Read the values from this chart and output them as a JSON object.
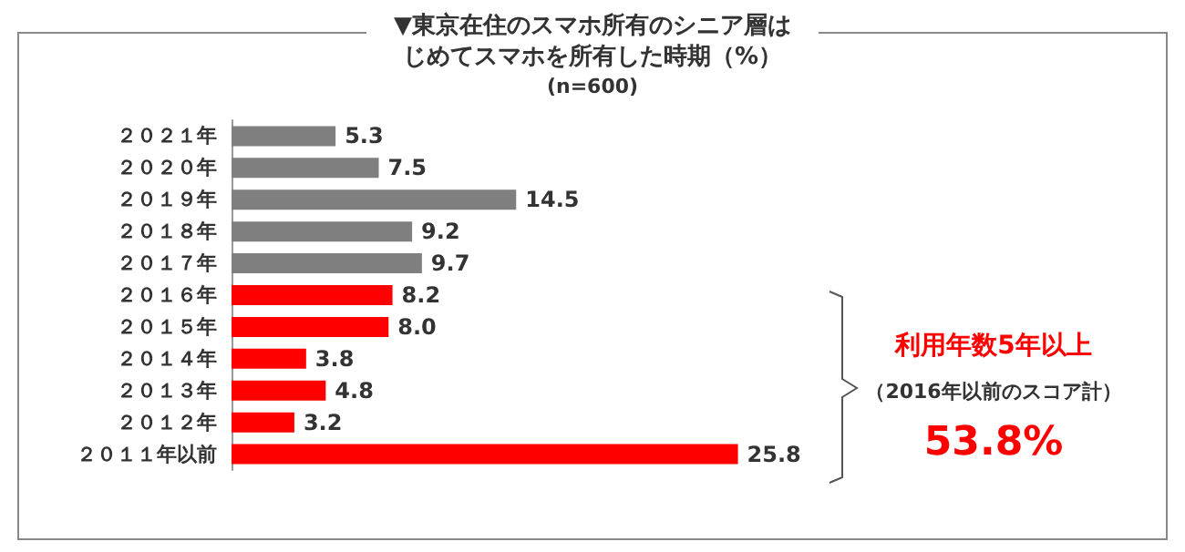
{
  "chart_data": {
    "type": "bar",
    "orientation": "horizontal",
    "title": "▼東京在住のスマホ所有のシニア層はじめてスマホを所有した時期（%）",
    "subtitle": "(n=600)",
    "categories": [
      "２０２１年",
      "２０２０年",
      "２０１９年",
      "２０１８年",
      "２０１７年",
      "２０１６年",
      "２０１５年",
      "２０１４年",
      "２０１３年",
      "２０１２年",
      "２０１１年以前"
    ],
    "values": [
      5.3,
      7.5,
      14.5,
      9.2,
      9.7,
      8.2,
      8.0,
      3.8,
      4.8,
      3.2,
      25.8
    ],
    "colors": [
      "#7f7f7f",
      "#7f7f7f",
      "#7f7f7f",
      "#7f7f7f",
      "#7f7f7f",
      "#ff0000",
      "#ff0000",
      "#ff0000",
      "#ff0000",
      "#ff0000",
      "#ff0000"
    ],
    "value_labels": [
      "5.3",
      "7.5",
      "14.5",
      "9.2",
      "9.7",
      "8.2",
      "8.0",
      "3.8",
      "4.8",
      "3.2",
      "25.8"
    ],
    "annotations": [
      "利用年数5年以上",
      "（2016年以前のスコア計）",
      "53.8%"
    ]
  }
}
